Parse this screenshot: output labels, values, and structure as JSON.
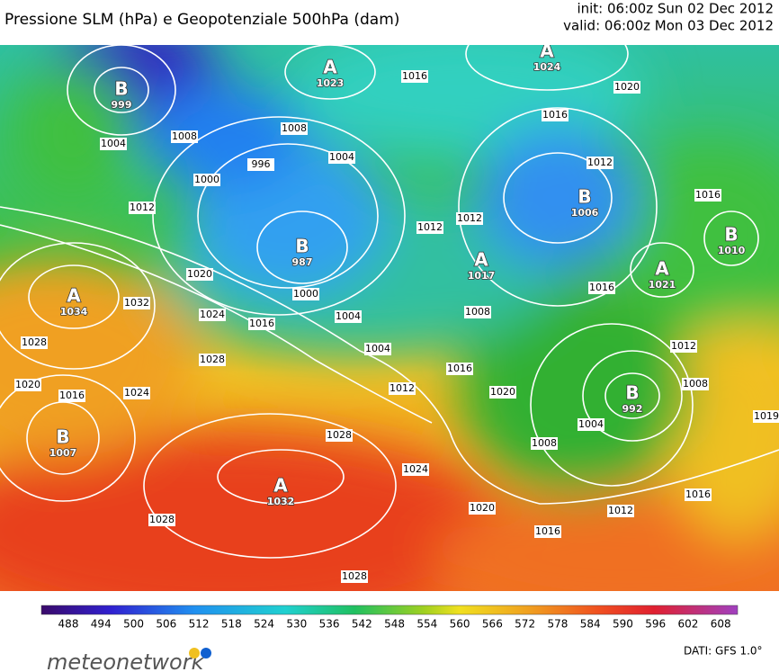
{
  "header": {
    "title": "Pressione SLM (hPa) e Geopotenziale 500hPa (dam)",
    "init": "init: 06:00z Sun 02 Dec 2012",
    "valid": "valid: 06:00z Mon 03 Dec 2012"
  },
  "map": {
    "centers": [
      {
        "letter": "B",
        "value": 999
      },
      {
        "letter": "A",
        "value": 1023
      },
      {
        "letter": "A",
        "value": 1024
      },
      {
        "letter": "B",
        "value": 987
      },
      {
        "letter": "A",
        "value": 1034
      },
      {
        "letter": "A",
        "value": 1017
      },
      {
        "letter": "B",
        "value": 1006
      },
      {
        "letter": "B",
        "value": 1010
      },
      {
        "letter": "A",
        "value": 1021
      },
      {
        "letter": "B",
        "value": 992
      },
      {
        "letter": "B",
        "value": 1007
      },
      {
        "letter": "A",
        "value": 1032
      }
    ],
    "isobar_labels": [
      1016,
      1020,
      1016,
      1004,
      1008,
      996,
      1000,
      1008,
      1004,
      1012,
      1016,
      1012,
      1012,
      1012,
      1020,
      1000,
      1032,
      1024,
      1016,
      1004,
      1008,
      1016,
      1028,
      1028,
      1004,
      1012,
      1016,
      1012,
      1020,
      1016,
      1024,
      1020,
      1008,
      1019,
      1028,
      1004,
      1008,
      1024,
      1020,
      1012,
      1016,
      1016,
      1028,
      1028
    ]
  },
  "colorbar": {
    "ticks": [
      488,
      494,
      500,
      506,
      512,
      518,
      524,
      530,
      536,
      542,
      548,
      554,
      560,
      566,
      572,
      578,
      584,
      590,
      596,
      602,
      608
    ]
  },
  "footer": {
    "logo": "meteonetwork",
    "source": "DATI:  GFS  1.0°"
  }
}
